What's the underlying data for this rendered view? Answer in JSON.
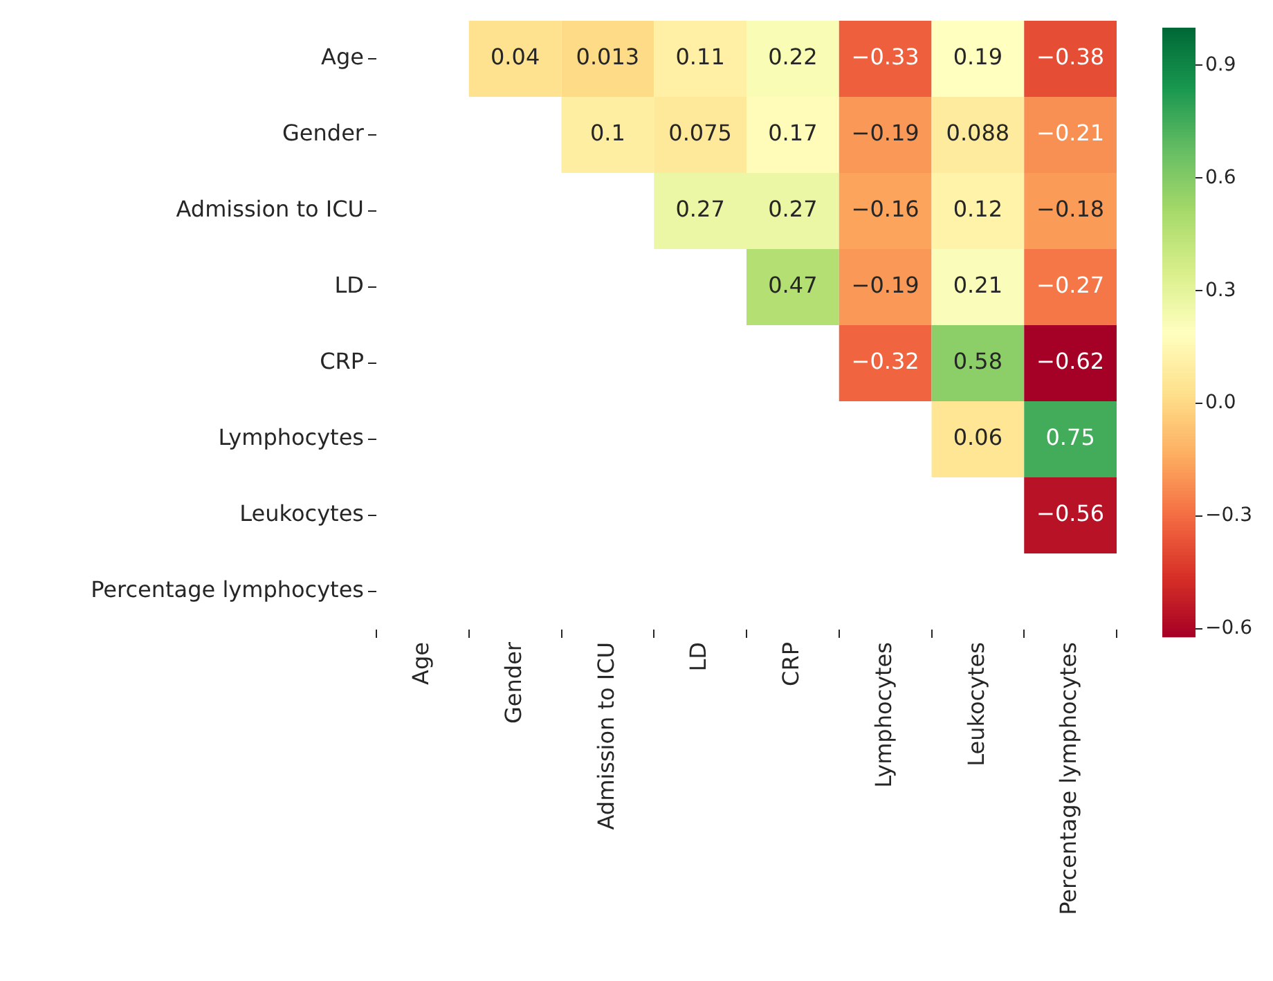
{
  "chart_data": {
    "type": "heatmap",
    "categories": [
      "Age",
      "Gender",
      "Admission to ICU",
      "LD",
      "CRP",
      "Lymphocytes",
      "Leukocytes",
      "Percentage lymphocytes"
    ],
    "y_categories": [
      "Age",
      "Gender",
      "Admission to ICU",
      "LD",
      "CRP",
      "Lymphocytes",
      "Leukocytes",
      "Percentage lymphocytes"
    ],
    "cells": [
      [
        null,
        0.04,
        0.013,
        0.11,
        0.22,
        -0.33,
        0.19,
        -0.38
      ],
      [
        null,
        null,
        0.1,
        0.075,
        0.17,
        -0.19,
        0.088,
        -0.21
      ],
      [
        null,
        null,
        null,
        0.27,
        0.27,
        -0.16,
        0.12,
        -0.18
      ],
      [
        null,
        null,
        null,
        null,
        0.47,
        -0.19,
        0.21,
        -0.27
      ],
      [
        null,
        null,
        null,
        null,
        null,
        -0.32,
        0.58,
        -0.62
      ],
      [
        null,
        null,
        null,
        null,
        null,
        null,
        0.06,
        0.75
      ],
      [
        null,
        null,
        null,
        null,
        null,
        null,
        null,
        -0.56
      ],
      [
        null,
        null,
        null,
        null,
        null,
        null,
        null,
        null
      ]
    ],
    "data_labels": true,
    "clim": [
      -0.62,
      1
    ],
    "cticks": [
      {
        "value": -0.6,
        "label": "−0.6"
      },
      {
        "value": -0.3,
        "label": "−0.3"
      },
      {
        "value": 0,
        "label": "0.0"
      },
      0.3,
      0.6,
      0.9
    ]
  }
}
